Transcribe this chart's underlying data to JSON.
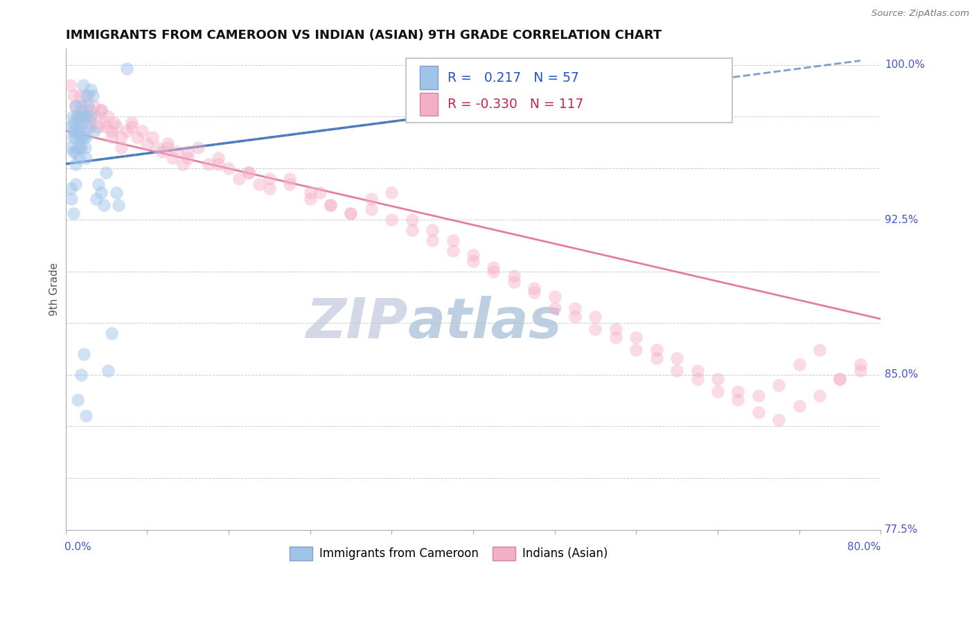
{
  "title": "IMMIGRANTS FROM CAMEROON VS INDIAN (ASIAN) 9TH GRADE CORRELATION CHART",
  "source_text": "Source: ZipAtlas.com",
  "ylabel": "9th Grade",
  "xlim": [
    0.0,
    0.8
  ],
  "ylim": [
    0.775,
    1.008
  ],
  "blue_R": 0.217,
  "blue_N": 57,
  "pink_R": -0.33,
  "pink_N": 117,
  "blue_color": "#a0c4e8",
  "pink_color": "#f4afc8",
  "blue_line_color": "#4477bb",
  "pink_line_color": "#e07090",
  "legend_label_blue": "Immigrants from Cameroon",
  "legend_label_pink": "Indians (Asian)",
  "watermark": "ZIPatlas",
  "watermark_color_zip": "#c8cce8",
  "watermark_color_atlas": "#b0c8e8",
  "right_labels": [
    [
      1.0,
      "100.0%"
    ],
    [
      0.925,
      "92.5%"
    ],
    [
      0.85,
      "85.0%"
    ],
    [
      0.775,
      "77.5%"
    ]
  ],
  "ytick_grid": [
    0.775,
    0.8,
    0.825,
    0.85,
    0.875,
    0.9,
    0.925,
    0.95,
    0.975,
    1.0
  ],
  "xticks": [
    0.0,
    0.08,
    0.16,
    0.24,
    0.32,
    0.4,
    0.48,
    0.56,
    0.64,
    0.72,
    0.8
  ],
  "blue_trend_x": [
    0.0,
    0.78
  ],
  "blue_trend_y": [
    0.952,
    1.002
  ],
  "pink_trend_x": [
    0.0,
    0.8
  ],
  "pink_trend_y": [
    0.968,
    0.877
  ],
  "blue_scatter_x": [
    0.005,
    0.005,
    0.007,
    0.007,
    0.008,
    0.008,
    0.008,
    0.01,
    0.01,
    0.01,
    0.01,
    0.01,
    0.011,
    0.012,
    0.012,
    0.013,
    0.013,
    0.013,
    0.014,
    0.014,
    0.015,
    0.015,
    0.015,
    0.016,
    0.016,
    0.017,
    0.018,
    0.018,
    0.019,
    0.02,
    0.02,
    0.02,
    0.02,
    0.022,
    0.022,
    0.025,
    0.025,
    0.027,
    0.028,
    0.03,
    0.032,
    0.035,
    0.038,
    0.04,
    0.042,
    0.045,
    0.05,
    0.052,
    0.06,
    0.005,
    0.006,
    0.008,
    0.01,
    0.012,
    0.015,
    0.018,
    0.02
  ],
  "blue_scatter_y": [
    0.97,
    0.96,
    0.975,
    0.965,
    0.972,
    0.968,
    0.958,
    0.98,
    0.97,
    0.965,
    0.958,
    0.952,
    0.975,
    0.968,
    0.96,
    0.975,
    0.965,
    0.955,
    0.97,
    0.96,
    0.98,
    0.97,
    0.96,
    0.975,
    0.965,
    0.99,
    0.975,
    0.965,
    0.96,
    0.985,
    0.975,
    0.965,
    0.955,
    0.98,
    0.97,
    0.988,
    0.975,
    0.985,
    0.968,
    0.935,
    0.942,
    0.938,
    0.932,
    0.948,
    0.852,
    0.87,
    0.938,
    0.932,
    0.998,
    0.94,
    0.935,
    0.928,
    0.942,
    0.838,
    0.85,
    0.86,
    0.83
  ],
  "pink_scatter_x": [
    0.005,
    0.008,
    0.01,
    0.012,
    0.014,
    0.015,
    0.016,
    0.018,
    0.02,
    0.022,
    0.024,
    0.025,
    0.028,
    0.03,
    0.032,
    0.035,
    0.038,
    0.04,
    0.042,
    0.045,
    0.048,
    0.05,
    0.055,
    0.06,
    0.065,
    0.07,
    0.075,
    0.08,
    0.085,
    0.09,
    0.095,
    0.1,
    0.105,
    0.11,
    0.115,
    0.12,
    0.13,
    0.14,
    0.15,
    0.16,
    0.17,
    0.18,
    0.19,
    0.2,
    0.22,
    0.24,
    0.25,
    0.26,
    0.28,
    0.3,
    0.32,
    0.34,
    0.36,
    0.38,
    0.4,
    0.42,
    0.44,
    0.46,
    0.48,
    0.5,
    0.52,
    0.54,
    0.56,
    0.58,
    0.6,
    0.62,
    0.64,
    0.66,
    0.68,
    0.7,
    0.72,
    0.74,
    0.76,
    0.78,
    0.1,
    0.12,
    0.15,
    0.18,
    0.2,
    0.22,
    0.24,
    0.26,
    0.28,
    0.3,
    0.32,
    0.34,
    0.36,
    0.38,
    0.4,
    0.42,
    0.44,
    0.46,
    0.48,
    0.5,
    0.52,
    0.54,
    0.56,
    0.58,
    0.6,
    0.62,
    0.64,
    0.66,
    0.68,
    0.7,
    0.72,
    0.74,
    0.76,
    0.78,
    0.025,
    0.035,
    0.045,
    0.055,
    0.065
  ],
  "pink_scatter_y": [
    0.99,
    0.985,
    0.98,
    0.975,
    0.985,
    0.978,
    0.972,
    0.98,
    0.975,
    0.985,
    0.978,
    0.972,
    0.98,
    0.975,
    0.97,
    0.978,
    0.972,
    0.97,
    0.975,
    0.968,
    0.972,
    0.97,
    0.965,
    0.968,
    0.97,
    0.965,
    0.968,
    0.962,
    0.965,
    0.96,
    0.958,
    0.962,
    0.955,
    0.958,
    0.952,
    0.955,
    0.96,
    0.952,
    0.955,
    0.95,
    0.945,
    0.948,
    0.942,
    0.945,
    0.942,
    0.935,
    0.938,
    0.932,
    0.928,
    0.93,
    0.925,
    0.92,
    0.915,
    0.91,
    0.905,
    0.9,
    0.895,
    0.89,
    0.882,
    0.878,
    0.872,
    0.868,
    0.862,
    0.858,
    0.852,
    0.848,
    0.842,
    0.838,
    0.832,
    0.828,
    0.835,
    0.84,
    0.848,
    0.852,
    0.96,
    0.958,
    0.952,
    0.948,
    0.94,
    0.945,
    0.938,
    0.932,
    0.928,
    0.935,
    0.938,
    0.925,
    0.92,
    0.915,
    0.908,
    0.902,
    0.898,
    0.892,
    0.888,
    0.882,
    0.878,
    0.872,
    0.868,
    0.862,
    0.858,
    0.852,
    0.848,
    0.842,
    0.84,
    0.845,
    0.855,
    0.862,
    0.848,
    0.855,
    0.97,
    0.978,
    0.965,
    0.96,
    0.972
  ]
}
